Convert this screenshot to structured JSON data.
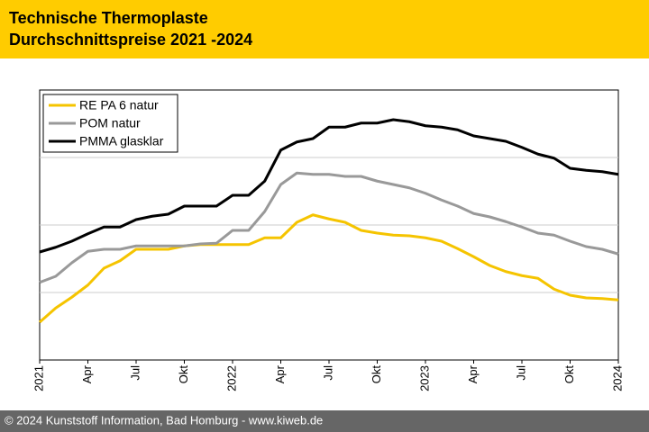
{
  "chart_data": {
    "type": "line",
    "title": "Technische Thermoplaste",
    "subtitle": "Durchschnittspreise 2021 -2024",
    "source": "© 2024 Kunststoff Information, Bad Homburg - www.kiweb.de",
    "categories": [
      "2021",
      null,
      null,
      "Apr",
      null,
      null,
      "Jul",
      null,
      null,
      "Okt",
      null,
      null,
      "2022",
      null,
      null,
      "Apr",
      null,
      null,
      "Jul",
      null,
      null,
      "Okt",
      null,
      null,
      "2023",
      null,
      null,
      "Apr",
      null,
      null,
      "Jul",
      null,
      null,
      "Okt",
      null,
      null,
      "2024"
    ],
    "ylim": [
      0,
      4
    ],
    "yticks": [
      1,
      2,
      3
    ],
    "grid": true,
    "legend": "top-left",
    "series": [
      {
        "name": "RE PA 6 natur",
        "color": "#f5c400",
        "values": [
          0.56,
          0.77,
          0.93,
          1.11,
          1.36,
          1.47,
          1.64,
          1.64,
          1.64,
          1.69,
          1.71,
          1.71,
          1.71,
          1.71,
          1.81,
          1.81,
          2.04,
          2.15,
          2.09,
          2.04,
          1.92,
          1.88,
          1.85,
          1.84,
          1.81,
          1.76,
          1.65,
          1.53,
          1.4,
          1.31,
          1.25,
          1.21,
          1.05,
          0.96,
          0.92,
          0.91,
          0.89
        ]
      },
      {
        "name": "POM natur",
        "color": "#999999",
        "values": [
          1.15,
          1.24,
          1.44,
          1.61,
          1.64,
          1.64,
          1.69,
          1.69,
          1.69,
          1.69,
          1.72,
          1.73,
          1.92,
          1.92,
          2.2,
          2.6,
          2.77,
          2.75,
          2.75,
          2.72,
          2.72,
          2.65,
          2.6,
          2.55,
          2.47,
          2.37,
          2.28,
          2.17,
          2.12,
          2.05,
          1.97,
          1.88,
          1.85,
          1.76,
          1.68,
          1.64,
          1.57
        ]
      },
      {
        "name": "PMMA glasklar",
        "color": "#000000",
        "values": [
          1.6,
          1.67,
          1.76,
          1.87,
          1.97,
          1.97,
          2.08,
          2.13,
          2.16,
          2.28,
          2.28,
          2.28,
          2.44,
          2.44,
          2.65,
          3.11,
          3.23,
          3.28,
          3.45,
          3.45,
          3.51,
          3.51,
          3.56,
          3.53,
          3.47,
          3.45,
          3.41,
          3.32,
          3.28,
          3.24,
          3.15,
          3.05,
          2.99,
          2.84,
          2.81,
          2.79,
          2.75
        ]
      }
    ]
  }
}
